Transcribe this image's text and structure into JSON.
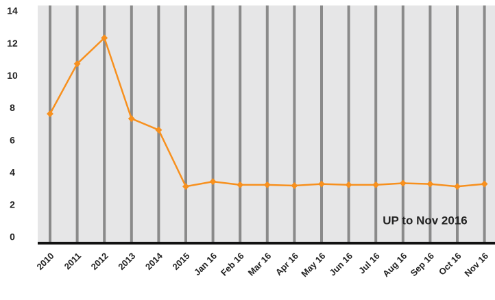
{
  "chart_data": {
    "type": "line",
    "categories": [
      "2010",
      "2011",
      "2012",
      "2013",
      "2014",
      "2015",
      "Jan 16",
      "Feb 16",
      "Mar 16",
      "Apr 16",
      "May 16",
      "Jun 16",
      "Jul 16",
      "Aug 16",
      "Sep 16",
      "Oct 16",
      "Nov 16"
    ],
    "series": [
      {
        "name": null,
        "color": "#f7901e",
        "values": [
          7.8,
          10.9,
          12.5,
          7.5,
          6.8,
          3.3,
          3.6,
          3.4,
          3.4,
          3.35,
          3.45,
          3.4,
          3.4,
          3.5,
          3.45,
          3.3,
          3.45
        ]
      }
    ],
    "ylim": [
      0,
      14
    ],
    "yticks": [
      0,
      2,
      4,
      6,
      8,
      10,
      12,
      14
    ],
    "grid": true,
    "annotation": "UP to Nov 2016"
  }
}
